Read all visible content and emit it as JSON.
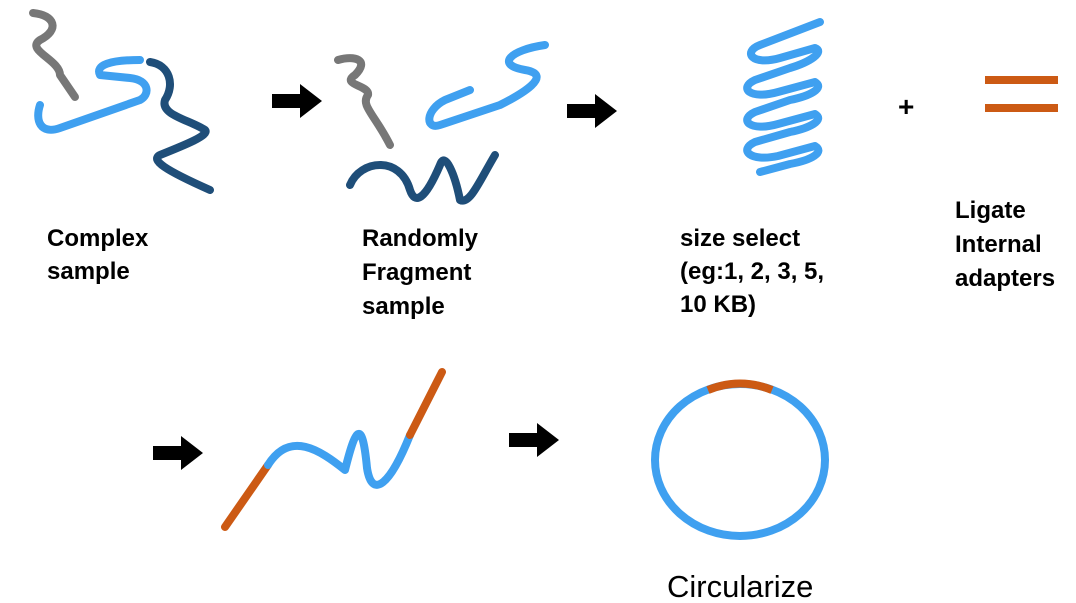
{
  "labels": [
    {
      "lines": [
        "Complex",
        "sample"
      ]
    },
    {
      "lines": [
        "Randomly",
        "Fragment",
        "sample"
      ]
    },
    {
      "lines": [
        "size select",
        "(eg:1, 2, 3, 5,",
        "10 KB)"
      ]
    },
    {
      "lines": [
        "Ligate",
        "Internal",
        "adapters"
      ]
    }
  ],
  "operator": "+",
  "final_label": "Circularize"
}
